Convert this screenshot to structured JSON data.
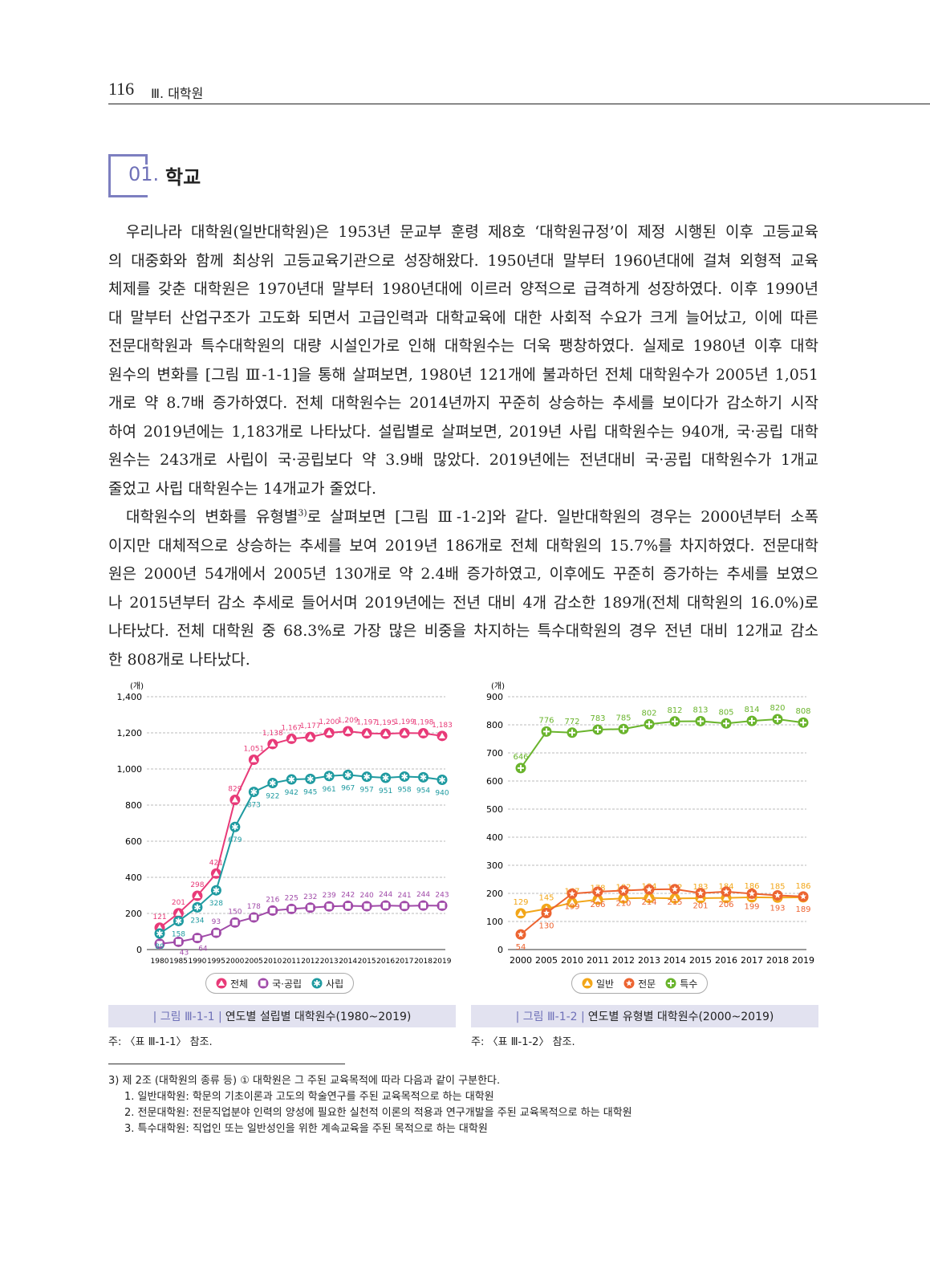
{
  "header": {
    "page_number": "116",
    "section": "Ⅲ. 대학원"
  },
  "section": {
    "number": "01.",
    "title": "학교"
  },
  "paragraph1": [
    "우리나라 대학원(일반대학원)은 1953년 문교부 훈령 제8호 ‘대학원규정’이 제정 시행된 이후 고등교육",
    "의 대중화와 함께 최상위 고등교육기관으로 성장해왔다. 1950년대 말부터 1960년대에 걸쳐 외형적 교육",
    "체제를 갖춘 대학원은 1970년대 말부터 1980년대에 이르러 양적으로 급격하게 성장하였다. 이후 1990년",
    "대 말부터 산업구조가 고도화 되면서 고급인력과 대학교육에 대한 사회적 수요가 크게 늘어났고, 이에 따른",
    "전문대학원과 특수대학원의 대량 시설인가로 인해 대학원수는 더욱 팽창하였다. 실제로 1980년 이후 대학",
    "원수의 변화를 [그림 Ⅲ-1-1]을 통해 살펴보면, 1980년 121개에 불과하던 전체 대학원수가 2005년 1,051",
    "개로 약 8.7배 증가하였다. 전체 대학원수는 2014년까지 꾸준히 상승하는 추세를 보이다가 감소하기 시작",
    "하여 2019년에는 1,183개로 나타났다. 설립별로 살펴보면, 2019년 사립 대학원수는 940개, 국·공립 대학",
    "원수는 243개로 사립이 국·공립보다 약 3.9배 많았다. 2019년에는 전년대비 국·공립 대학원수가 1개교",
    "줄었고 사립 대학원수는 14개교가 줄었다."
  ],
  "paragraph2_first": {
    "a": "대학원수의 변화를 유형별",
    "sup": "3)",
    "b": "로 살펴보면 [그림 Ⅲ-1-2]와 같다. 일반대학원의 경우는 2000년부터 소폭"
  },
  "paragraph2": [
    "이지만 대체적으로 상승하는 추세를 보여 2019년 186개로 전체 대학원의 15.7%를 차지하였다. 전문대학",
    "원은 2000년 54개에서 2005년 130개로 약 2.4배 증가하였고, 이후에도 꾸준히 증가하는 추세를 보였으",
    "나 2015년부터 감소 추세로 들어서며 2019년에는 전년 대비 4개 감소한 189개(전체 대학원의 16.0%)로",
    "나타났다. 전체 대학원 중 68.3%로 가장 많은 비중을 차지하는 특수대학원의 경우 전년 대비 12개교 감소",
    "한 808개로 나타났다."
  ],
  "chart_data": [
    {
      "type": "line",
      "unit": "(개)",
      "ylim": [
        0,
        1400
      ],
      "yticks": [
        0,
        200,
        400,
        600,
        800,
        1000,
        1200,
        1400
      ],
      "ytick_labels": [
        "0",
        "200",
        "400",
        "600",
        "800",
        "1,000",
        "1,200",
        "1,400"
      ],
      "categories": [
        "1980",
        "1985",
        "1990",
        "1995",
        "2000",
        "2005",
        "2010",
        "2011",
        "2012",
        "2013",
        "2014",
        "2015",
        "2016",
        "2017",
        "2018",
        "2019"
      ],
      "series": [
        {
          "name": "전체",
          "color": "#e83a78",
          "marker": "triangle",
          "values": [
            121,
            201,
            298,
            421,
            829,
            1051,
            1138,
            1167,
            1177,
            1200,
            1209,
            1197,
            1195,
            1199,
            1198,
            1183
          ],
          "labels": [
            "121",
            "201",
            "298",
            "421",
            "829",
            "1,051",
            "1,138",
            "1,167",
            "1,177",
            "1,200",
            "1,209",
            "1,197",
            "1,195",
            "1,199",
            "1,198",
            "1,183"
          ],
          "label_pos": "above"
        },
        {
          "name": "국·공립",
          "color": "#a04aa8",
          "marker": "square",
          "values": [
            32,
            43,
            64,
            93,
            150,
            178,
            216,
            225,
            232,
            239,
            242,
            240,
            244,
            241,
            244,
            243
          ],
          "labels": [
            "32",
            "43",
            "64",
            "93",
            "150",
            "178",
            "216",
            "225",
            "232",
            "239",
            "242",
            "240",
            "244",
            "241",
            "244",
            "243"
          ],
          "label_pos": "above"
        },
        {
          "name": "사립",
          "color": "#1e9aa0",
          "marker": "asterisk",
          "values": [
            89,
            158,
            234,
            328,
            679,
            873,
            922,
            942,
            945,
            961,
            967,
            957,
            951,
            958,
            954,
            940
          ],
          "labels": [
            "89",
            "158",
            "234",
            "328",
            "679",
            "873",
            "922",
            "942",
            "945",
            "961",
            "967",
            "957",
            "951",
            "958",
            "954",
            "940"
          ],
          "label_pos": "below"
        }
      ],
      "caption_label": "| 그림 Ⅲ-1-1 |",
      "caption": "연도별 설립별 대학원수(1980~2019)",
      "note": "주: 〈표 Ⅲ-1-1〉 참조.",
      "legend": "bottom"
    },
    {
      "type": "line",
      "unit": "(개)",
      "ylim": [
        0,
        900
      ],
      "yticks": [
        0,
        100,
        200,
        300,
        400,
        500,
        600,
        700,
        800,
        900
      ],
      "ytick_labels": [
        "0",
        "100",
        "200",
        "300",
        "400",
        "500",
        "600",
        "700",
        "800",
        "900"
      ],
      "categories": [
        "2000",
        "2005",
        "2010",
        "2011",
        "2012",
        "2013",
        "2014",
        "2015",
        "2016",
        "2017",
        "2018",
        "2019"
      ],
      "series": [
        {
          "name": "일반",
          "color": "#f2a619",
          "marker": "triangle",
          "values": [
            129,
            145,
            167,
            178,
            182,
            184,
            182,
            183,
            184,
            186,
            185,
            186
          ],
          "labels": [
            "129",
            "145",
            "167",
            "178",
            "182",
            "184",
            "182",
            "183",
            "184",
            "186",
            "185",
            "186"
          ],
          "label_pos": "above"
        },
        {
          "name": "전문",
          "color": "#ec6431",
          "marker": "star",
          "values": [
            54,
            130,
            199,
            206,
            210,
            214,
            215,
            201,
            206,
            199,
            193,
            189
          ],
          "labels": [
            "54",
            "130",
            "199",
            "206",
            "210",
            "214",
            "215",
            "201",
            "206",
            "199",
            "193",
            "189"
          ],
          "label_pos": "below"
        },
        {
          "name": "특수",
          "color": "#6ab42d",
          "marker": "plus",
          "values": [
            646,
            776,
            772,
            783,
            785,
            802,
            812,
            813,
            805,
            814,
            820,
            808
          ],
          "labels": [
            "646",
            "776",
            "772",
            "783",
            "785",
            "802",
            "812",
            "813",
            "805",
            "814",
            "820",
            "808"
          ],
          "label_pos": "above"
        }
      ],
      "caption_label": "| 그림 Ⅲ-1-2 |",
      "caption": "연도별 유형별 대학원수(2000~2019)",
      "note": "주: 〈표 Ⅲ-1-2〉 참조.",
      "legend": "bottom"
    }
  ],
  "footnote": {
    "title": "3) 제 2조 (대학원의 종류 등) ① 대학원은 그 주된 교육목적에 따라 다음과 같이 구분한다.",
    "items": [
      "1. 일반대학원: 학문의 기초이론과 고도의 학술연구를 주된 교육목적으로 하는 대학원",
      "2. 전문대학원: 전문직업분야 인력의 양성에 필요한 실천적 이론의 적용과 연구개발을 주된 교육목적으로 하는 대학원",
      "3. 특수대학원: 직업인 또는 일반성인을 위한 계속교육을 주된 목적으로 하는 대학원"
    ]
  }
}
